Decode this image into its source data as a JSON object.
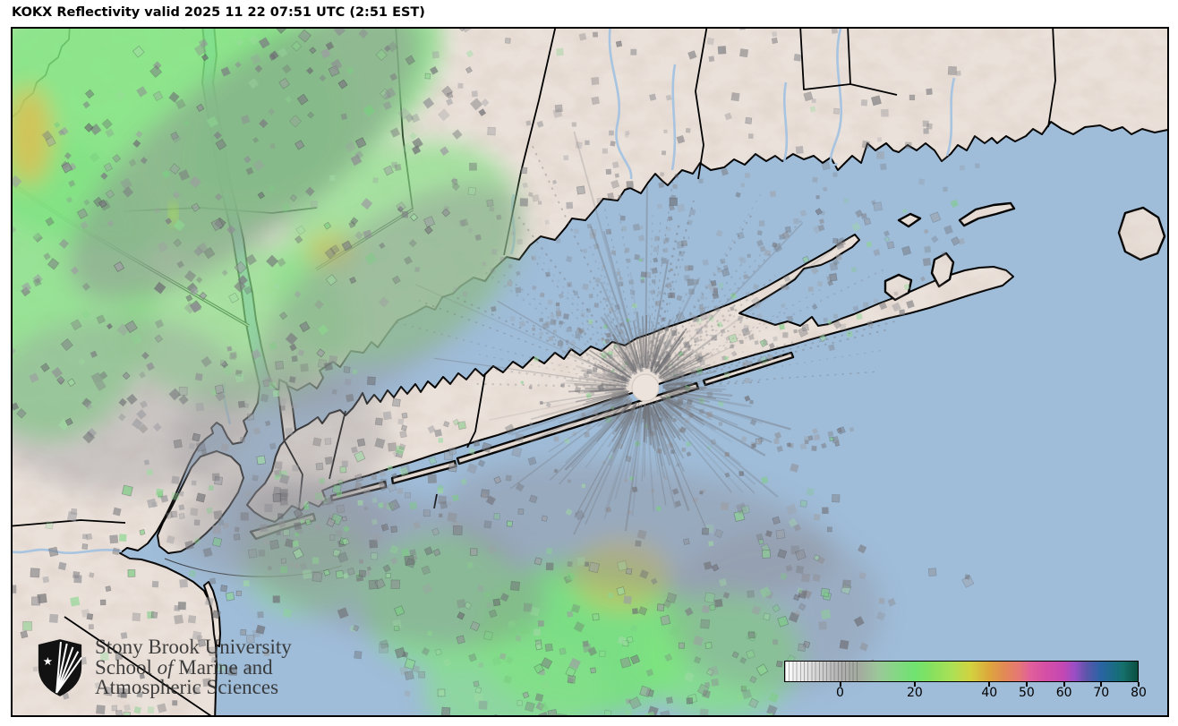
{
  "header": {
    "title": "KOKX Reflectivity valid 2025 11 22 07:51 UTC (2:51 EST)"
  },
  "branding": {
    "org_line1": "Stony Brook University",
    "org_line2_prefix": "School ",
    "org_line2_italic": "of",
    "org_line2_suffix": " Marine and",
    "org_line3": "Atmospheric Sciences"
  },
  "colorbar": {
    "scale_min": -15,
    "scale_max": 80,
    "ticks": [
      {
        "label": "0",
        "value": 0
      },
      {
        "label": "20",
        "value": 20
      },
      {
        "label": "40",
        "value": 40
      },
      {
        "label": "50",
        "value": 50
      },
      {
        "label": "60",
        "value": 60
      },
      {
        "label": "70",
        "value": 70
      },
      {
        "label": "80",
        "value": 80
      }
    ],
    "scale_colors": [
      {
        "v": -15,
        "c": "#ffffff"
      },
      {
        "v": -12,
        "c": "#efefef"
      },
      {
        "v": -8,
        "c": "#dedede"
      },
      {
        "v": -4,
        "c": "#c7c7c7"
      },
      {
        "v": 0,
        "c": "#b0b0b0"
      },
      {
        "v": 5,
        "c": "#a3ab9e"
      },
      {
        "v": 10,
        "c": "#9cc79a"
      },
      {
        "v": 15,
        "c": "#85d785"
      },
      {
        "v": 20,
        "c": "#6fe36f"
      },
      {
        "v": 25,
        "c": "#8ae05e"
      },
      {
        "v": 30,
        "c": "#ace055"
      },
      {
        "v": 35,
        "c": "#d2d23f"
      },
      {
        "v": 40,
        "c": "#dda63c"
      },
      {
        "v": 44,
        "c": "#e28a55"
      },
      {
        "v": 48,
        "c": "#e57775"
      },
      {
        "v": 51,
        "c": "#e0609a"
      },
      {
        "v": 55,
        "c": "#d64fa4"
      },
      {
        "v": 60,
        "c": "#c348b4"
      },
      {
        "v": 63,
        "c": "#9a4ec5"
      },
      {
        "v": 66,
        "c": "#5f55ab"
      },
      {
        "v": 70,
        "c": "#2a63a4"
      },
      {
        "v": 73,
        "c": "#1d6a8a"
      },
      {
        "v": 76,
        "c": "#15706c"
      },
      {
        "v": 80,
        "c": "#0b4f40"
      }
    ]
  },
  "map_colors": {
    "water": "#9fbcd8",
    "land": "#eae1da",
    "echo_green": "#79e07c",
    "echo_yellow": "#d9c154",
    "clutter_gray": "#8e8e93",
    "coastline": "#000000",
    "river": "#a3c2e0"
  }
}
